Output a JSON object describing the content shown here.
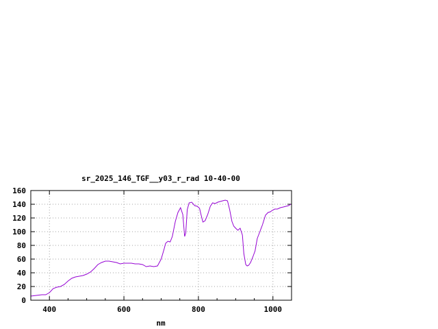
{
  "chart_data": {
    "type": "line",
    "title": "sr_2025_146_TGF__y03_r_rad 10-40-00",
    "xlabel": "nm",
    "ylabel": "",
    "xlim": [
      350,
      1050
    ],
    "ylim": [
      0,
      160
    ],
    "xticks": [
      400,
      600,
      800,
      1000
    ],
    "yticks": [
      0,
      20,
      40,
      60,
      80,
      100,
      120,
      140,
      160
    ],
    "grid": true,
    "line_color": "#9400d3",
    "series": [
      {
        "name": "",
        "x": [
          350,
          365,
          380,
          390,
          400,
          410,
          420,
          430,
          440,
          450,
          460,
          470,
          480,
          490,
          500,
          510,
          520,
          530,
          540,
          550,
          560,
          570,
          580,
          590,
          600,
          610,
          620,
          630,
          640,
          650,
          660,
          670,
          680,
          690,
          700,
          708,
          712,
          718,
          724,
          730,
          738,
          745,
          752,
          758,
          763,
          766,
          770,
          775,
          782,
          790,
          797,
          803,
          807,
          812,
          818,
          825,
          832,
          838,
          845,
          852,
          858,
          865,
          872,
          878,
          884,
          890,
          895,
          900,
          906,
          912,
          918,
          922,
          927,
          931,
          935,
          940,
          946,
          952,
          958,
          965,
          972,
          980,
          987,
          993,
          998,
          1005,
          1012,
          1020,
          1028,
          1035,
          1042,
          1048
        ],
        "values": [
          6,
          7,
          8,
          8,
          11,
          17,
          19,
          20,
          23,
          28,
          32,
          34,
          35,
          36,
          38,
          41,
          46,
          52,
          55,
          57,
          57,
          56,
          55,
          53,
          54,
          54,
          54,
          53,
          53,
          52,
          49,
          50,
          49,
          50,
          60,
          75,
          83,
          86,
          85,
          93,
          115,
          128,
          135,
          125,
          93,
          98,
          132,
          142,
          143,
          138,
          137,
          134,
          125,
          114,
          116,
          125,
          137,
          142,
          141,
          143,
          144,
          145,
          146,
          145,
          132,
          115,
          108,
          105,
          102,
          105,
          95,
          68,
          52,
          50,
          51,
          55,
          63,
          72,
          90,
          100,
          110,
          124,
          128,
          129,
          131,
          133,
          133,
          135,
          136,
          137,
          138,
          140
        ]
      }
    ]
  }
}
